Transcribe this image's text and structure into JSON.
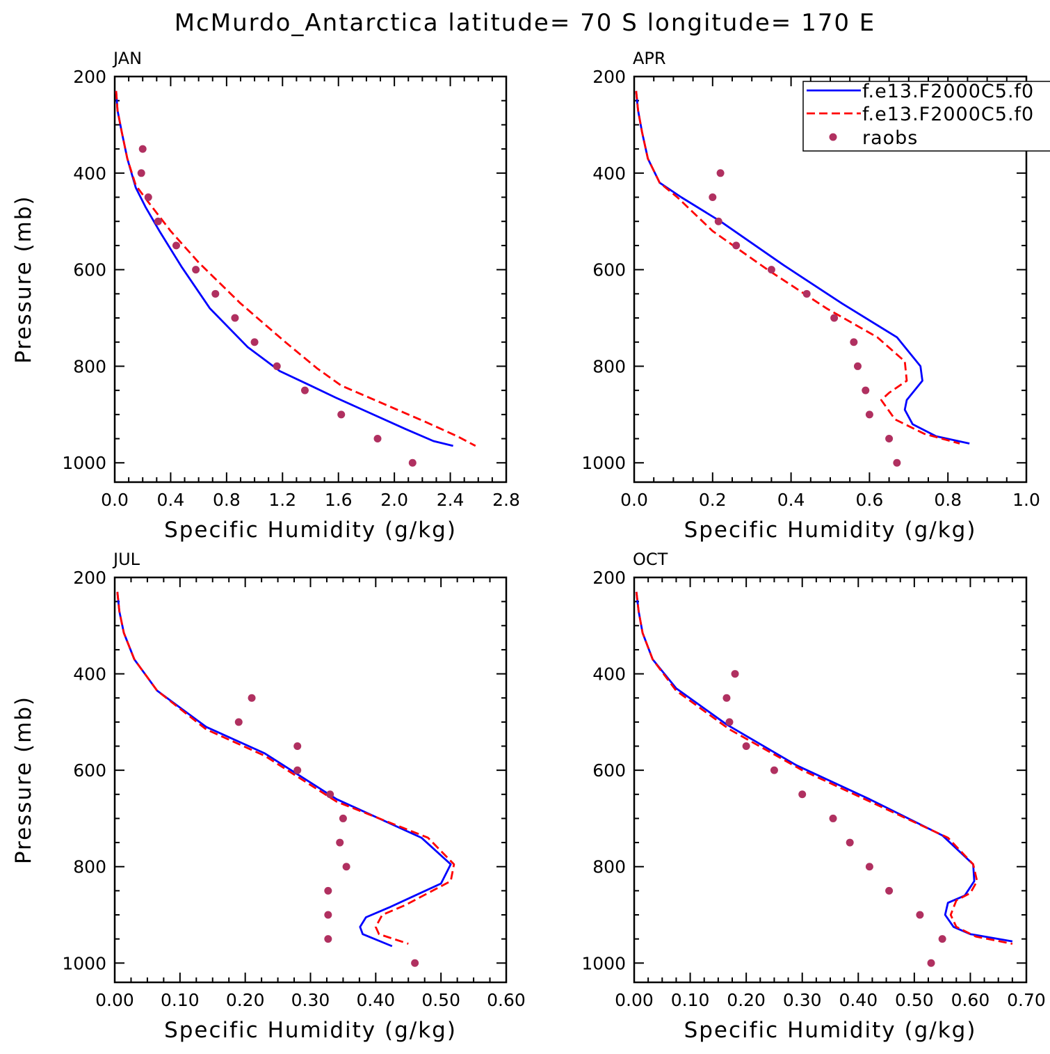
{
  "title": "McMurdo_Antarctica  latitude= 70 S longitude= 170 E",
  "colors": {
    "model1": "#0000ff",
    "model2": "#ff0000",
    "raobs": "#b03060"
  },
  "legend": {
    "entries": [
      {
        "label": "f.e13.F2000C5.f0",
        "style": "solid",
        "color": "#0000ff"
      },
      {
        "label": "f.e13.F2000C5.f0",
        "style": "dashed",
        "color": "#ff0000"
      },
      {
        "label": "raobs",
        "style": "marker",
        "color": "#b03060"
      }
    ]
  },
  "chart_data": [
    {
      "type": "line",
      "panel": "JAN",
      "xlabel": "Specific Humidity (g/kg)",
      "ylabel": "Pressure (mb)",
      "xlim": [
        0,
        2.8
      ],
      "ylim": [
        1000,
        200
      ],
      "xticks": [
        0.0,
        0.4,
        0.8,
        1.2,
        1.6,
        2.0,
        2.4,
        2.8
      ],
      "xtick_labels": [
        "0.0",
        "0.4",
        "0.8",
        "1.2",
        "1.6",
        "2.0",
        "2.4",
        "2.8"
      ],
      "yticks": [
        200,
        400,
        600,
        800,
        1000
      ],
      "ytick_labels": [
        "200",
        "400",
        "600",
        "800",
        "1000"
      ],
      "series": [
        {
          "key": "model1",
          "style": "solid",
          "x": [
            0.01,
            0.02,
            0.05,
            0.09,
            0.15,
            0.22,
            0.32,
            0.48,
            0.68,
            0.95,
            1.18,
            1.4,
            1.58,
            2.08,
            2.28,
            2.42
          ],
          "y": [
            230,
            270,
            315,
            370,
            430,
            470,
            520,
            595,
            680,
            760,
            810,
            840,
            865,
            930,
            955,
            965
          ]
        },
        {
          "key": "model2",
          "style": "dashed",
          "x": [
            0.01,
            0.02,
            0.05,
            0.09,
            0.15,
            0.24,
            0.4,
            0.6,
            0.9,
            1.22,
            1.45,
            1.62,
            2.22,
            2.45,
            2.58
          ],
          "y": [
            230,
            270,
            315,
            370,
            425,
            460,
            520,
            585,
            670,
            750,
            805,
            840,
            915,
            945,
            965
          ]
        },
        {
          "key": "raobs",
          "style": "markers",
          "x": [
            0.2,
            0.19,
            0.24,
            0.31,
            0.44,
            0.58,
            0.72,
            0.86,
            1.0,
            1.16,
            1.36,
            1.62,
            1.88,
            2.13
          ],
          "y": [
            350,
            400,
            450,
            500,
            550,
            600,
            650,
            700,
            750,
            800,
            850,
            900,
            950,
            1000
          ]
        }
      ]
    },
    {
      "type": "line",
      "panel": "APR",
      "xlabel": "Specific Humidity (g/kg)",
      "ylabel": "",
      "xlim": [
        0,
        1.0
      ],
      "ylim": [
        1000,
        200
      ],
      "xticks": [
        0.0,
        0.2,
        0.4,
        0.6,
        0.8,
        1.0
      ],
      "xtick_labels": [
        "0.0",
        "0.2",
        "0.4",
        "0.6",
        "0.8",
        "1.0"
      ],
      "yticks": [
        200,
        400,
        600,
        800,
        1000
      ],
      "ytick_labels": [
        "200",
        "400",
        "600",
        "800",
        "1000"
      ],
      "series": [
        {
          "key": "model1",
          "style": "solid",
          "x": [
            0.005,
            0.01,
            0.02,
            0.035,
            0.065,
            0.12,
            0.22,
            0.38,
            0.53,
            0.67,
            0.73,
            0.735,
            0.695,
            0.69,
            0.71,
            0.77,
            0.855
          ],
          "y": [
            230,
            270,
            315,
            370,
            420,
            450,
            500,
            590,
            670,
            740,
            800,
            830,
            870,
            890,
            920,
            945,
            960
          ]
        },
        {
          "key": "model2",
          "style": "dashed",
          "x": [
            0.005,
            0.01,
            0.02,
            0.035,
            0.065,
            0.11,
            0.2,
            0.34,
            0.49,
            0.62,
            0.69,
            0.695,
            0.65,
            0.63,
            0.665,
            0.74,
            0.83
          ],
          "y": [
            230,
            270,
            315,
            370,
            420,
            450,
            520,
            600,
            680,
            740,
            790,
            830,
            855,
            870,
            910,
            940,
            960
          ]
        },
        {
          "key": "raobs",
          "style": "markers",
          "x": [
            0.22,
            0.2,
            0.215,
            0.26,
            0.35,
            0.44,
            0.51,
            0.56,
            0.57,
            0.59,
            0.6,
            0.65,
            0.67
          ],
          "y": [
            400,
            450,
            500,
            550,
            600,
            650,
            700,
            750,
            800,
            850,
            900,
            950,
            1000
          ]
        }
      ]
    },
    {
      "type": "line",
      "panel": "JUL",
      "xlabel": "Specific Humidity (g/kg)",
      "ylabel": "Pressure (mb)",
      "xlim": [
        0,
        0.6
      ],
      "ylim": [
        1000,
        200
      ],
      "xticks": [
        0.0,
        0.1,
        0.2,
        0.3,
        0.4,
        0.5,
        0.6
      ],
      "xtick_labels": [
        "0.00",
        "0.10",
        "0.20",
        "0.30",
        "0.40",
        "0.50",
        "0.60"
      ],
      "yticks": [
        200,
        400,
        600,
        800,
        1000
      ],
      "ytick_labels": [
        "200",
        "400",
        "600",
        "800",
        "1000"
      ],
      "series": [
        {
          "key": "model1",
          "style": "solid",
          "x": [
            0.004,
            0.007,
            0.014,
            0.03,
            0.065,
            0.14,
            0.23,
            0.34,
            0.47,
            0.515,
            0.5,
            0.46,
            0.42,
            0.385,
            0.376,
            0.38,
            0.425
          ],
          "y": [
            230,
            270,
            315,
            370,
            435,
            510,
            565,
            660,
            740,
            795,
            835,
            860,
            885,
            905,
            925,
            940,
            965
          ]
        },
        {
          "key": "model2",
          "style": "dashed",
          "x": [
            0.004,
            0.007,
            0.014,
            0.03,
            0.065,
            0.14,
            0.23,
            0.34,
            0.48,
            0.52,
            0.515,
            0.48,
            0.445,
            0.41,
            0.4,
            0.405,
            0.45
          ],
          "y": [
            230,
            270,
            315,
            370,
            435,
            515,
            570,
            665,
            740,
            795,
            830,
            855,
            880,
            900,
            925,
            940,
            960
          ]
        },
        {
          "key": "raobs",
          "style": "markers",
          "x": [
            0.21,
            0.19,
            0.28,
            0.28,
            0.33,
            0.35,
            0.345,
            0.355,
            0.327,
            0.327,
            0.327,
            0.46
          ],
          "y": [
            450,
            500,
            550,
            600,
            650,
            700,
            750,
            800,
            850,
            900,
            950,
            1000
          ]
        }
      ]
    },
    {
      "type": "line",
      "panel": "OCT",
      "xlabel": "Specific Humidity (g/kg)",
      "ylabel": "",
      "xlim": [
        0,
        0.7
      ],
      "ylim": [
        1000,
        200
      ],
      "xticks": [
        0.0,
        0.1,
        0.2,
        0.3,
        0.4,
        0.5,
        0.6,
        0.7
      ],
      "xtick_labels": [
        "0.00",
        "0.10",
        "0.20",
        "0.30",
        "0.40",
        "0.50",
        "0.60",
        "0.70"
      ],
      "yticks": [
        200,
        400,
        600,
        800,
        1000
      ],
      "ytick_labels": [
        "200",
        "400",
        "600",
        "800",
        "1000"
      ],
      "series": [
        {
          "key": "model1",
          "style": "solid",
          "x": [
            0.004,
            0.008,
            0.015,
            0.033,
            0.075,
            0.165,
            0.29,
            0.42,
            0.55,
            0.605,
            0.607,
            0.59,
            0.56,
            0.555,
            0.57,
            0.6,
            0.675
          ],
          "y": [
            230,
            270,
            315,
            370,
            430,
            505,
            590,
            660,
            735,
            795,
            830,
            860,
            875,
            900,
            925,
            940,
            955
          ]
        },
        {
          "key": "model2",
          "style": "dashed",
          "x": [
            0.004,
            0.008,
            0.015,
            0.033,
            0.075,
            0.17,
            0.3,
            0.43,
            0.56,
            0.605,
            0.612,
            0.6,
            0.575,
            0.565,
            0.575,
            0.61,
            0.675
          ],
          "y": [
            230,
            270,
            315,
            370,
            435,
            515,
            600,
            670,
            740,
            795,
            830,
            855,
            870,
            900,
            925,
            945,
            960
          ]
        },
        {
          "key": "raobs",
          "style": "markers",
          "x": [
            0.18,
            0.165,
            0.17,
            0.2,
            0.25,
            0.3,
            0.355,
            0.385,
            0.42,
            0.455,
            0.51,
            0.55,
            0.53
          ],
          "y": [
            400,
            450,
            500,
            550,
            600,
            650,
            700,
            750,
            800,
            850,
            900,
            950,
            1000
          ]
        }
      ]
    }
  ]
}
